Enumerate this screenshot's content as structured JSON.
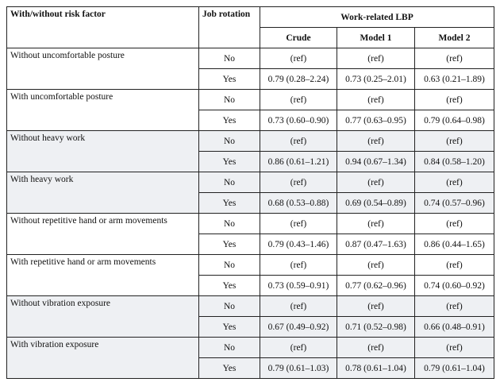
{
  "header": {
    "risk_factor": "With/without risk factor",
    "job_rotation": "Job rotation",
    "outcome": "Work-related LBP",
    "crude": "Crude",
    "model1": "Model 1",
    "model2": "Model 2"
  },
  "groups": [
    {
      "factor": "Without uncomfortable posture",
      "rows": [
        {
          "rotation": "No",
          "crude": "(ref)",
          "model1": "(ref)",
          "model2": "(ref)"
        },
        {
          "rotation": "Yes",
          "crude": "0.79 (0.28–2.24)",
          "model1": "0.73 (0.25–2.01)",
          "model2": "0.63 (0.21–1.89)"
        }
      ]
    },
    {
      "factor": "With uncomfortable posture",
      "rows": [
        {
          "rotation": "No",
          "crude": "(ref)",
          "model1": "(ref)",
          "model2": "(ref)"
        },
        {
          "rotation": "Yes",
          "crude": "0.73 (0.60–0.90)",
          "model1": "0.77 (0.63–0.95)",
          "model2": "0.79 (0.64–0.98)"
        }
      ]
    },
    {
      "factor": "Without heavy work",
      "rows": [
        {
          "rotation": "No",
          "crude": "(ref)",
          "model1": "(ref)",
          "model2": "(ref)"
        },
        {
          "rotation": "Yes",
          "crude": "0.86 (0.61–1.21)",
          "model1": "0.94 (0.67–1.34)",
          "model2": "0.84 (0.58–1.20)"
        }
      ]
    },
    {
      "factor": "With heavy work",
      "rows": [
        {
          "rotation": "No",
          "crude": "(ref)",
          "model1": "(ref)",
          "model2": "(ref)"
        },
        {
          "rotation": "Yes",
          "crude": "0.68 (0.53–0.88)",
          "model1": "0.69 (0.54–0.89)",
          "model2": "0.74 (0.57–0.96)"
        }
      ]
    },
    {
      "factor": "Without repetitive hand or arm movements",
      "rows": [
        {
          "rotation": "No",
          "crude": "(ref)",
          "model1": "(ref)",
          "model2": "(ref)"
        },
        {
          "rotation": "Yes",
          "crude": "0.79 (0.43–1.46)",
          "model1": "0.87 (0.47–1.63)",
          "model2": "0.86 (0.44–1.65)"
        }
      ]
    },
    {
      "factor": "With repetitive hand or arm movements",
      "rows": [
        {
          "rotation": "No",
          "crude": "(ref)",
          "model1": "(ref)",
          "model2": "(ref)"
        },
        {
          "rotation": "Yes",
          "crude": "0.73 (0.59–0.91)",
          "model1": "0.77 (0.62–0.96)",
          "model2": "0.74 (0.60–0.92)"
        }
      ]
    },
    {
      "factor": "Without vibration exposure",
      "rows": [
        {
          "rotation": "No",
          "crude": "(ref)",
          "model1": "(ref)",
          "model2": "(ref)"
        },
        {
          "rotation": "Yes",
          "crude": "0.67 (0.49–0.92)",
          "model1": "0.71 (0.52–0.98)",
          "model2": "0.66 (0.48–0.91)"
        }
      ]
    },
    {
      "factor": "With vibration exposure",
      "rows": [
        {
          "rotation": "No",
          "crude": "(ref)",
          "model1": "(ref)",
          "model2": "(ref)"
        },
        {
          "rotation": "Yes",
          "crude": "0.79 (0.61–1.03)",
          "model1": "0.78 (0.61–1.04)",
          "model2": "0.79 (0.61–1.04)"
        }
      ]
    }
  ],
  "shaded_groups": [
    2,
    3,
    6,
    7
  ]
}
